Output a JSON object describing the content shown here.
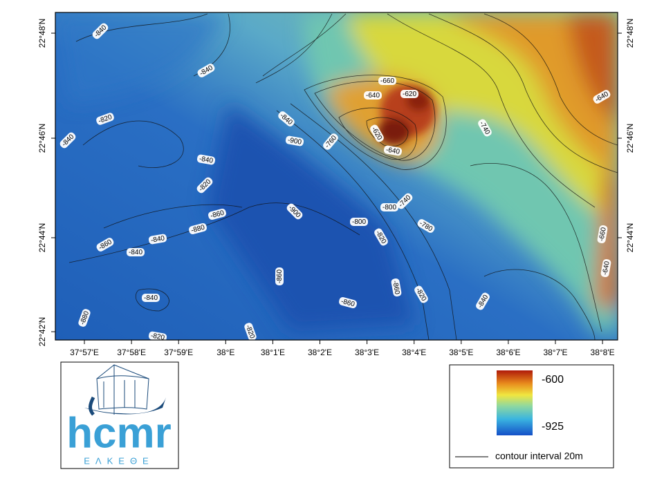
{
  "map": {
    "x_labels": [
      "37°57'E",
      "37°58'E",
      "37°59'E",
      "38°E",
      "38°1'E",
      "38°2'E",
      "38°3'E",
      "38°4'E",
      "38°5'E",
      "38°6'E",
      "38°7'E",
      "38°8'E"
    ],
    "y_labels_left": [
      "22°48'N",
      "22°46'N",
      "22°44'N",
      "22°42'N"
    ],
    "y_labels_right": [
      "22°48'N",
      "22°46'N",
      "22°44'N"
    ],
    "contour_labels": [
      "-840",
      "-840",
      "-820",
      "-840",
      "-840",
      "-820",
      "-860",
      "-880",
      "-840",
      "-860",
      "-840",
      "-840",
      "-880",
      "-820",
      "-820",
      "-860",
      "-900",
      "-840",
      "-760",
      "-900",
      "-660",
      "-640",
      "-620",
      "-620",
      "-640",
      "-740",
      "-740",
      "-800",
      "-800",
      "-820",
      "-780",
      "-860",
      "-820",
      "-860",
      "-840",
      "-640",
      "-660",
      "-640"
    ]
  },
  "legend": {
    "max": "-600",
    "min": "-925",
    "contour": "contour interval 20m"
  },
  "logo": {
    "name": "hcmr",
    "subtitle": "ΕΛΚΕΘΕ"
  }
}
